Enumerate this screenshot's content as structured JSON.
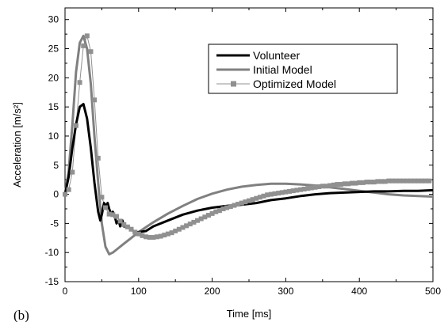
{
  "chart_data": {
    "type": "line",
    "title": "",
    "panel_label": "(b)",
    "xlabel": "Time [ms]",
    "ylabel": "Acceleration [m/s²]",
    "xlim": [
      0,
      500
    ],
    "ylim": [
      -15,
      32
    ],
    "x_ticks": [
      0,
      100,
      200,
      300,
      400,
      500
    ],
    "y_ticks": [
      -15,
      -10,
      -5,
      0,
      5,
      10,
      15,
      20,
      25,
      30
    ],
    "grid": false,
    "legend_position": "top-right",
    "colors": {
      "volunteer": "#000000",
      "initial": "#808080",
      "optimized": "#909090"
    },
    "series": [
      {
        "name": "Volunteer",
        "style": "thick-line",
        "x": [
          0,
          5,
          10,
          15,
          20,
          25,
          30,
          35,
          40,
          45,
          48,
          50,
          53,
          55,
          58,
          60,
          63,
          65,
          68,
          70,
          73,
          75,
          78,
          80,
          85,
          90,
          95,
          100,
          110,
          120,
          140,
          160,
          180,
          200,
          220,
          240,
          260,
          280,
          300,
          320,
          340,
          360,
          380,
          400,
          420,
          440,
          460,
          480,
          500
        ],
        "y": [
          0,
          3,
          8,
          12,
          15,
          15.5,
          13,
          8,
          2,
          -3,
          -4.5,
          -3.5,
          -1.5,
          -2,
          -1.5,
          -2.5,
          -3.5,
          -3,
          -4,
          -5,
          -4.5,
          -5.5,
          -4.5,
          -5.5,
          -5.5,
          -6,
          -6.5,
          -6.5,
          -6.3,
          -5.5,
          -4.5,
          -3.5,
          -2.8,
          -2.3,
          -2,
          -1.8,
          -1.5,
          -1,
          -0.7,
          -0.3,
          0,
          0.2,
          0.3,
          0.4,
          0.5,
          0.5,
          0.6,
          0.6,
          0.7
        ]
      },
      {
        "name": "Initial Model",
        "style": "thick-line",
        "x": [
          0,
          5,
          10,
          15,
          20,
          25,
          30,
          35,
          40,
          45,
          50,
          55,
          60,
          65,
          70,
          80,
          90,
          100,
          120,
          140,
          160,
          180,
          200,
          220,
          240,
          260,
          280,
          300,
          320,
          340,
          360,
          380,
          400,
          420,
          440,
          460,
          480,
          500
        ],
        "y": [
          0,
          4,
          12,
          21,
          26,
          27.2,
          25,
          19,
          10,
          2,
          -5,
          -9,
          -10.3,
          -10,
          -9.5,
          -8.5,
          -7.5,
          -6.5,
          -4.8,
          -3.3,
          -2,
          -0.8,
          0.1,
          0.8,
          1.3,
          1.6,
          1.8,
          1.8,
          1.7,
          1.5,
          1.2,
          0.9,
          0.6,
          0.3,
          0,
          -0.2,
          -0.3,
          -0.4
        ]
      },
      {
        "name": "Optimized Model",
        "style": "thin-line-square-markers",
        "x": [
          0,
          5,
          10,
          15,
          20,
          25,
          30,
          35,
          40,
          45,
          50,
          55,
          60,
          65,
          70,
          75,
          80,
          85,
          90,
          95,
          100,
          105,
          110,
          115,
          120,
          125,
          130,
          135,
          140,
          145,
          150,
          155,
          160,
          165,
          170,
          175,
          180,
          185,
          190,
          195,
          200,
          205,
          210,
          215,
          220,
          225,
          230,
          235,
          240,
          245,
          250,
          255,
          260,
          265,
          270,
          275,
          280,
          285,
          290,
          295,
          300,
          305,
          310,
          315,
          320,
          325,
          330,
          335,
          340,
          345,
          350,
          355,
          360,
          365,
          370,
          375,
          380,
          385,
          390,
          395,
          400,
          405,
          410,
          415,
          420,
          425,
          430,
          435,
          440,
          445,
          450,
          455,
          460,
          465,
          470,
          475,
          480,
          485,
          490,
          495
        ],
        "y": [
          0,
          0.8,
          3.8,
          11.8,
          19.2,
          25.5,
          27.2,
          24.5,
          16.2,
          6.2,
          -0.5,
          -2.3,
          -3.4,
          -3.5,
          -3.8,
          -4.6,
          -5.2,
          -5.6,
          -6,
          -6.5,
          -6.8,
          -7.1,
          -7.3,
          -7.4,
          -7.4,
          -7.3,
          -7.2,
          -7,
          -6.8,
          -6.6,
          -6.3,
          -6,
          -5.7,
          -5.4,
          -5.1,
          -4.8,
          -4.5,
          -4.2,
          -3.9,
          -3.6,
          -3.3,
          -3,
          -2.8,
          -2.5,
          -2.3,
          -2.1,
          -1.9,
          -1.7,
          -1.5,
          -1.3,
          -1.1,
          -0.9,
          -0.7,
          -0.5,
          -0.3,
          -0.1,
          0,
          0.1,
          0.2,
          0.3,
          0.4,
          0.5,
          0.6,
          0.7,
          0.8,
          0.9,
          1,
          1.1,
          1.2,
          1.3,
          1.4,
          1.4,
          1.5,
          1.6,
          1.7,
          1.7,
          1.8,
          1.8,
          1.9,
          1.9,
          2,
          2,
          2.1,
          2.1,
          2.1,
          2.2,
          2.2,
          2.2,
          2.3,
          2.3,
          2.3,
          2.3,
          2.3,
          2.3,
          2.3,
          2.3,
          2.3,
          2.3,
          2.3,
          2.3
        ]
      }
    ]
  }
}
